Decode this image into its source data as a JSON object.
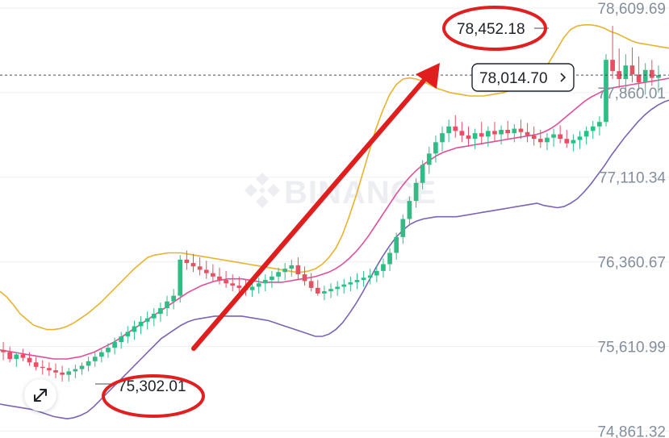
{
  "brand": {
    "watermark": "BINANCE"
  },
  "current_price_tag": {
    "label": "78,014.70",
    "value": 78014.7,
    "chevron_icon": "chevron-right-icon"
  },
  "annotations": {
    "high_label": "78,452.18",
    "low_label": "75,302.01",
    "trend_arrow_icon": "arrow-up-right-icon",
    "circle_color": "#e02020",
    "arrow_color": "#e01e1e"
  },
  "expand_button": {
    "icon": "expand-diagonal-icon"
  },
  "colors": {
    "up": "#2ebd85",
    "down": "#e84f63",
    "boll_upper": "#e8b32e",
    "boll_mid": "#e04f9a",
    "boll_lower": "#7b64b3",
    "grid": "#eef0f3"
  },
  "chart_data": {
    "type": "candlestick",
    "title": "",
    "indicators": [
      "Bollinger upper",
      "Bollinger middle",
      "Bollinger lower"
    ],
    "y_ticks": [
      {
        "value": 78609.69,
        "label": "78,609.69"
      },
      {
        "value": 77860.01,
        "label": "77,860.01"
      },
      {
        "value": 77110.34,
        "label": "77,110.34"
      },
      {
        "value": 76360.67,
        "label": "76,360.67"
      },
      {
        "value": 75610.99,
        "label": "75,610.99"
      },
      {
        "value": 74861.32,
        "label": "74,861.32"
      }
    ],
    "ylim": [
      74800,
      78680
    ],
    "grid": true,
    "current_price": 78014.7,
    "high_marker": 78452.18,
    "low_marker": 75302.01,
    "candles_ohlc": [
      [
        75580,
        75650,
        75490,
        75560
      ],
      [
        75560,
        75610,
        75470,
        75500
      ],
      [
        75500,
        75560,
        75430,
        75540
      ],
      [
        75540,
        75590,
        75480,
        75510
      ],
      [
        75510,
        75560,
        75440,
        75470
      ],
      [
        75470,
        75520,
        75400,
        75430
      ],
      [
        75430,
        75490,
        75360,
        75420
      ],
      [
        75420,
        75470,
        75350,
        75400
      ],
      [
        75400,
        75460,
        75330,
        75380
      ],
      [
        75380,
        75440,
        75300,
        75360
      ],
      [
        75360,
        75420,
        75300,
        75390
      ],
      [
        75390,
        75450,
        75330,
        75410
      ],
      [
        75410,
        75470,
        75360,
        75440
      ],
      [
        75440,
        75520,
        75390,
        75480
      ],
      [
        75480,
        75560,
        75430,
        75520
      ],
      [
        75520,
        75600,
        75470,
        75560
      ],
      [
        75560,
        75640,
        75510,
        75600
      ],
      [
        75600,
        75690,
        75540,
        75650
      ],
      [
        75650,
        75740,
        75590,
        75700
      ],
      [
        75700,
        75790,
        75640,
        75740
      ],
      [
        75740,
        75840,
        75670,
        75790
      ],
      [
        75790,
        75880,
        75720,
        75830
      ],
      [
        75830,
        75920,
        75760,
        75860
      ],
      [
        75860,
        75950,
        75790,
        75900
      ],
      [
        75900,
        76000,
        75830,
        75950
      ],
      [
        75950,
        76060,
        75880,
        76010
      ],
      [
        76010,
        76120,
        75940,
        76060
      ],
      [
        76060,
        76420,
        76000,
        76380
      ],
      [
        76380,
        76460,
        76290,
        76350
      ],
      [
        76350,
        76430,
        76270,
        76320
      ],
      [
        76320,
        76400,
        76240,
        76290
      ],
      [
        76290,
        76370,
        76210,
        76260
      ],
      [
        76260,
        76340,
        76190,
        76230
      ],
      [
        76230,
        76310,
        76160,
        76200
      ],
      [
        76200,
        76280,
        76130,
        76170
      ],
      [
        76170,
        76250,
        76100,
        76150
      ],
      [
        76150,
        76230,
        76080,
        76130
      ],
      [
        76130,
        76200,
        76060,
        76110
      ],
      [
        76110,
        76190,
        76050,
        76140
      ],
      [
        76140,
        76220,
        76080,
        76170
      ],
      [
        76170,
        76250,
        76100,
        76200
      ],
      [
        76200,
        76280,
        76130,
        76230
      ],
      [
        76230,
        76310,
        76170,
        76270
      ],
      [
        76270,
        76350,
        76200,
        76300
      ],
      [
        76300,
        76380,
        76230,
        76330
      ],
      [
        76330,
        76400,
        76200,
        76250
      ],
      [
        76250,
        76320,
        76150,
        76190
      ],
      [
        76190,
        76260,
        76100,
        76130
      ],
      [
        76130,
        76200,
        76060,
        76080
      ],
      [
        76080,
        76150,
        76020,
        76100
      ],
      [
        76100,
        76170,
        76040,
        76120
      ],
      [
        76120,
        76190,
        76060,
        76140
      ],
      [
        76140,
        76210,
        76080,
        76160
      ],
      [
        76160,
        76230,
        76100,
        76180
      ],
      [
        76180,
        76260,
        76120,
        76200
      ],
      [
        76200,
        76280,
        76140,
        76220
      ],
      [
        76220,
        76300,
        76160,
        76240
      ],
      [
        76240,
        76330,
        76180,
        76280
      ],
      [
        76280,
        76390,
        76220,
        76340
      ],
      [
        76340,
        76480,
        76280,
        76440
      ],
      [
        76440,
        76620,
        76380,
        76580
      ],
      [
        76580,
        76780,
        76520,
        76740
      ],
      [
        76740,
        76940,
        76680,
        76900
      ],
      [
        76900,
        77100,
        76840,
        77060
      ],
      [
        77060,
        77260,
        77000,
        77220
      ],
      [
        77220,
        77380,
        77140,
        77320
      ],
      [
        77320,
        77480,
        77240,
        77420
      ],
      [
        77420,
        77560,
        77340,
        77500
      ],
      [
        77500,
        77620,
        77420,
        77560
      ],
      [
        77560,
        77660,
        77460,
        77520
      ],
      [
        77520,
        77600,
        77420,
        77480
      ],
      [
        77480,
        77560,
        77380,
        77450
      ],
      [
        77450,
        77540,
        77360,
        77500
      ],
      [
        77500,
        77600,
        77400,
        77470
      ],
      [
        77470,
        77560,
        77380,
        77520
      ],
      [
        77520,
        77600,
        77430,
        77490
      ],
      [
        77490,
        77570,
        77400,
        77530
      ],
      [
        77530,
        77610,
        77440,
        77500
      ],
      [
        77500,
        77580,
        77420,
        77540
      ],
      [
        77540,
        77620,
        77450,
        77510
      ],
      [
        77510,
        77590,
        77420,
        77480
      ],
      [
        77480,
        77560,
        77390,
        77450
      ],
      [
        77450,
        77530,
        77370,
        77420
      ],
      [
        77420,
        77500,
        77350,
        77460
      ],
      [
        77460,
        77540,
        77380,
        77490
      ],
      [
        77490,
        77570,
        77410,
        77450
      ],
      [
        77450,
        77530,
        77370,
        77410
      ],
      [
        77410,
        77490,
        77340,
        77440
      ],
      [
        77440,
        77520,
        77360,
        77470
      ],
      [
        77470,
        77560,
        77400,
        77520
      ],
      [
        77520,
        77610,
        77450,
        77560
      ],
      [
        77560,
        77650,
        77480,
        77600
      ],
      [
        77600,
        78200,
        77560,
        78150
      ],
      [
        78150,
        78452,
        77980,
        78050
      ],
      [
        78050,
        78250,
        77900,
        77980
      ],
      [
        77980,
        78200,
        77860,
        78100
      ],
      [
        78100,
        78260,
        77950,
        78020
      ],
      [
        78020,
        78180,
        77880,
        77950
      ],
      [
        77950,
        78120,
        77840,
        78060
      ],
      [
        78060,
        78150,
        77920,
        77990
      ],
      [
        77990,
        78100,
        77860,
        78014.7
      ]
    ],
    "bollinger": {
      "upper": [
        76100,
        76050,
        75980,
        75900,
        75850,
        75800,
        75780,
        75760,
        75760,
        75770,
        75790,
        75820,
        75860,
        75900,
        75950,
        76000,
        76060,
        76120,
        76180,
        76240,
        76300,
        76350,
        76400,
        76420,
        76430,
        76440,
        76440,
        76440,
        76430,
        76420,
        76410,
        76400,
        76390,
        76380,
        76370,
        76360,
        76350,
        76340,
        76330,
        76320,
        76310,
        76300,
        76290,
        76280,
        76270,
        76270,
        76280,
        76300,
        76340,
        76400,
        76480,
        76600,
        76760,
        76940,
        77140,
        77340,
        77540,
        77700,
        77840,
        77930,
        77980,
        77990,
        77980,
        77960,
        77930,
        77900,
        77880,
        77860,
        77850,
        77840,
        77830,
        77830,
        77830,
        77840,
        77850,
        77860,
        77880,
        77900,
        77920,
        77950,
        77980,
        78050,
        78150,
        78250,
        78350,
        78420,
        78450,
        78460,
        78460,
        78450,
        78430,
        78400,
        78380,
        78350,
        78320,
        78300,
        78290,
        78280,
        78270,
        78260,
        78250
      ],
      "middle": [
        75580,
        75570,
        75560,
        75550,
        75540,
        75530,
        75520,
        75510,
        75500,
        75500,
        75500,
        75510,
        75520,
        75540,
        75560,
        75590,
        75620,
        75650,
        75690,
        75730,
        75770,
        75810,
        75850,
        75890,
        75930,
        75970,
        76010,
        76050,
        76090,
        76120,
        76150,
        76170,
        76190,
        76200,
        76210,
        76210,
        76210,
        76200,
        76190,
        76180,
        76180,
        76180,
        76180,
        76190,
        76200,
        76210,
        76220,
        76230,
        76250,
        76270,
        76300,
        76340,
        76390,
        76450,
        76520,
        76600,
        76690,
        76780,
        76870,
        76960,
        77040,
        77110,
        77170,
        77220,
        77260,
        77300,
        77330,
        77350,
        77370,
        77380,
        77390,
        77400,
        77410,
        77420,
        77430,
        77440,
        77450,
        77460,
        77470,
        77480,
        77490,
        77510,
        77540,
        77580,
        77630,
        77680,
        77730,
        77780,
        77820,
        77850,
        77880,
        77900,
        77910,
        77920,
        77930,
        77940,
        77950,
        77960,
        77970,
        77980,
        77990
      ],
      "lower": [
        75100,
        75090,
        75080,
        75070,
        75060,
        75050,
        75030,
        75010,
        74990,
        74980,
        74970,
        74980,
        75000,
        75030,
        75080,
        75140,
        75200,
        75260,
        75320,
        75380,
        75440,
        75500,
        75560,
        75620,
        75680,
        75720,
        75760,
        75800,
        75830,
        75850,
        75860,
        75870,
        75880,
        75880,
        75880,
        75880,
        75880,
        75870,
        75860,
        75850,
        75840,
        75820,
        75800,
        75780,
        75760,
        75740,
        75720,
        75700,
        75700,
        75720,
        75760,
        75820,
        75900,
        75990,
        76090,
        76200,
        76310,
        76410,
        76500,
        76580,
        76640,
        76690,
        76720,
        76740,
        76750,
        76760,
        76760,
        76760,
        76760,
        76770,
        76780,
        76790,
        76800,
        76810,
        76820,
        76830,
        76840,
        76850,
        76860,
        76870,
        76880,
        76860,
        76850,
        76840,
        76850,
        76880,
        76920,
        76980,
        77050,
        77130,
        77210,
        77300,
        77380,
        77460,
        77530,
        77600,
        77660,
        77710,
        77750,
        77780,
        77800
      ]
    }
  }
}
